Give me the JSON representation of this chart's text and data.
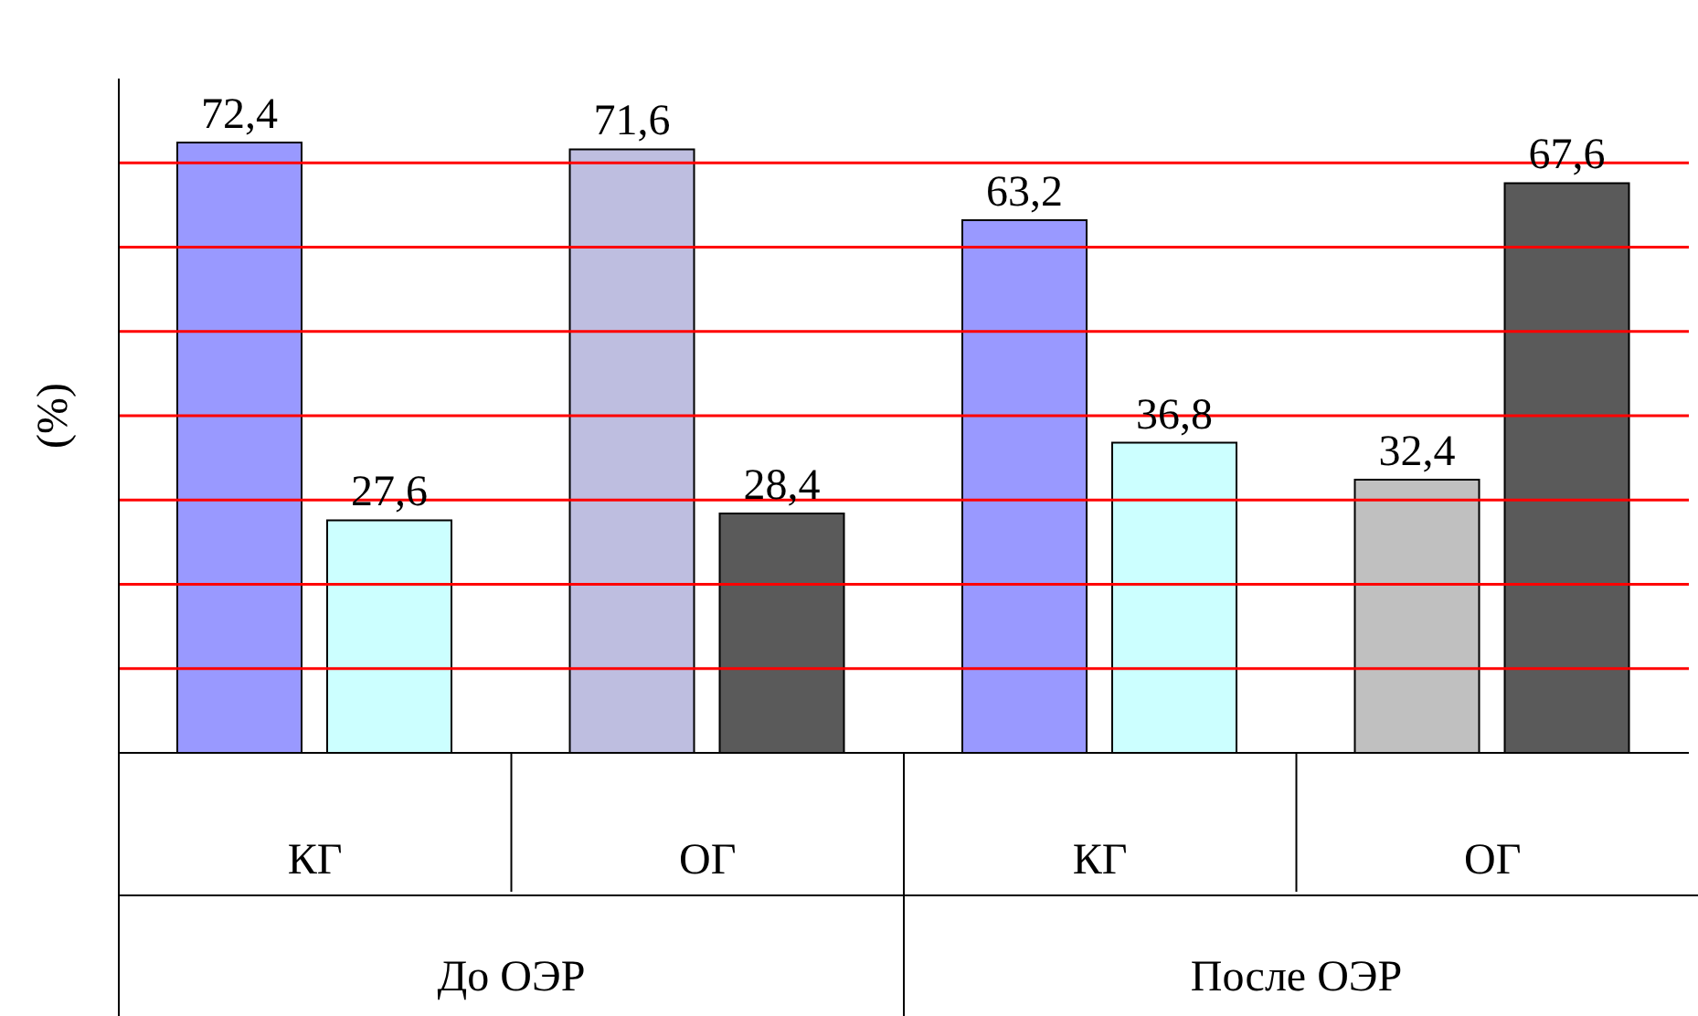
{
  "chart_data": {
    "type": "bar",
    "ylabel": "(%)",
    "categories": [
      "КГ",
      "ОГ",
      "КГ",
      "ОГ"
    ],
    "annotations": [
      "До ОЭР",
      "После ОЭР"
    ],
    "series": [
      {
        "values": [
          72.4,
          71.6,
          63.2,
          32.4
        ],
        "colors": [
          "#9999ff",
          "#bebee0",
          "#9999ff",
          "#c0c0c0"
        ],
        "value_labels": [
          "72,4",
          "71,6",
          "63,2",
          "32,4"
        ]
      },
      {
        "values": [
          27.6,
          28.4,
          36.8,
          67.6
        ],
        "colors": [
          "#ccffff",
          "#5a5a5a",
          "#ccffff",
          "#5a5a5a"
        ],
        "value_labels": [
          "27,6",
          "28,4",
          "36,8",
          "67,6"
        ]
      }
    ],
    "ylim": [
      0,
      80
    ],
    "yticks": [
      {
        "value": 10,
        "label": null
      },
      {
        "value": 20,
        "label": null
      },
      {
        "value": 30,
        "label": null
      },
      {
        "value": 40,
        "label": null
      },
      {
        "value": 50,
        "label": null
      },
      {
        "value": 60,
        "label": null
      },
      {
        "value": 70,
        "label": null
      }
    ],
    "grid": "y",
    "tick_labels": "x",
    "legend": false
  }
}
